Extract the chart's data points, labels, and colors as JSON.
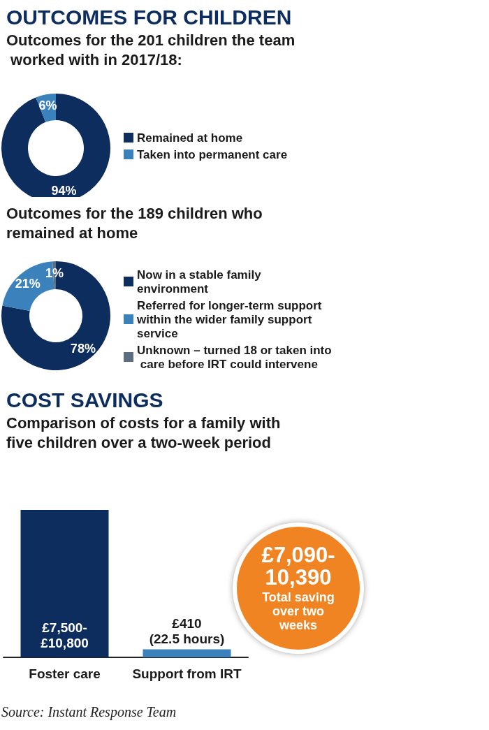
{
  "chart_data": [
    {
      "type": "donut",
      "title": "OUTCOMES FOR CHILDREN",
      "subtitle": "Outcomes for the 201 children the team worked with in 2017/18:",
      "categories": [
        "Remained at home",
        "Taken into permanent care"
      ],
      "values": [
        94,
        6
      ],
      "value_labels": [
        "94%",
        "6%"
      ],
      "colors": [
        "#0d2d5e",
        "#3b82bd"
      ],
      "legend": "right"
    },
    {
      "type": "donut",
      "title": "Outcomes for the 189 children who remained at home",
      "categories": [
        "Now in a stable family environment",
        "Referred for longer-term support within the wider family support service",
        "Unknown – turned 18 or taken into care before IRT could intervene"
      ],
      "values": [
        78,
        21,
        1
      ],
      "value_labels": [
        "78%",
        "21%",
        "1%"
      ],
      "colors": [
        "#0d2d5e",
        "#3b82bd",
        "#5b6f80"
      ],
      "legend": "right"
    },
    {
      "type": "bar",
      "title": "COST SAVINGS",
      "subtitle": "Comparison of costs for a family with five children over a two-week period",
      "categories": [
        "Foster care",
        "Support from IRT"
      ],
      "values": [
        7500,
        410
      ],
      "value_labels": [
        "£7,500- £10,800",
        "£410 (22.5 hours)"
      ],
      "colors": [
        "#0d2d5e",
        "#3b82bd"
      ],
      "annotations": [
        "£7,090-10,390",
        "Total saving over two weeks",
        "Source: Instant Response Team"
      ]
    }
  ]
}
